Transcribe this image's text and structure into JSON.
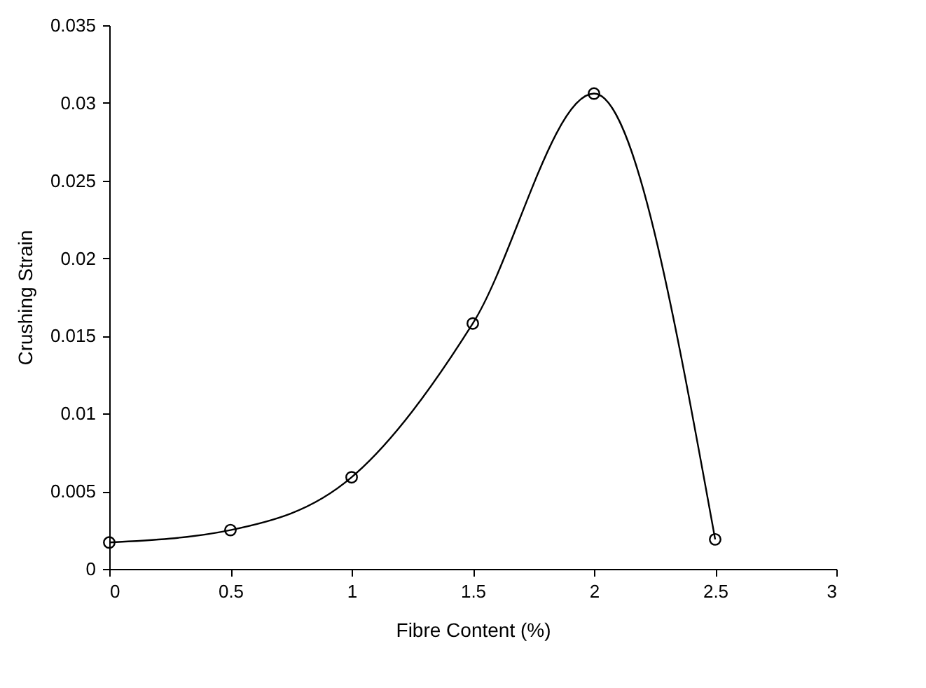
{
  "chart_data": {
    "type": "line",
    "xlabel": "Fibre Content (%)",
    "ylabel": "Crushing Strain",
    "x": [
      0,
      0.5,
      1,
      1.5,
      2,
      2.5
    ],
    "series": [
      {
        "color": "#000000",
        "values": [
          0.0017,
          0.0025,
          0.0059,
          0.0158,
          0.0306,
          0.0019
        ]
      }
    ],
    "xlim": [
      0,
      3
    ],
    "xticks": [
      0,
      0.5,
      1,
      1.5,
      2,
      2.5,
      3
    ],
    "ylim": [
      0,
      0.035
    ],
    "yticks": [
      0,
      0.005,
      0.01,
      0.015,
      0.02,
      0.025,
      0.03,
      0.035
    ],
    "grid": false,
    "marker": "circle",
    "line_style": "solid"
  }
}
